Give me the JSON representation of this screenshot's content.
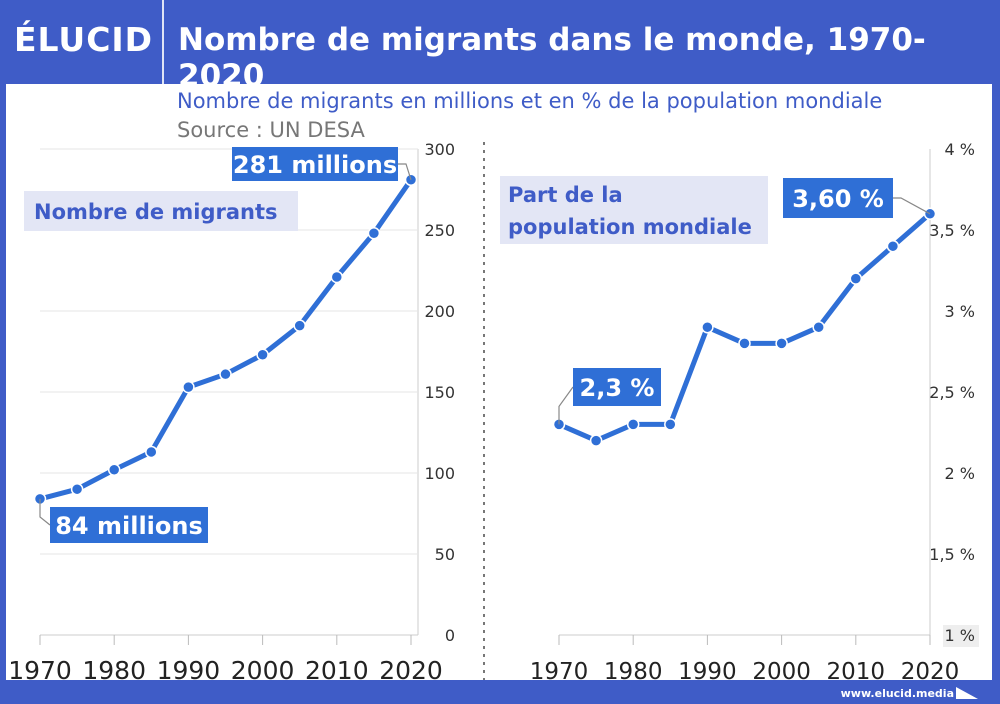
{
  "header": {
    "logo": "ÉLUCID",
    "title": "Nombre de migrants dans le monde, 1970-2020"
  },
  "subtitle": "Nombre de migrants en millions et en % de la population mondiale",
  "source": "Source : UN DESA",
  "footer": "www.elucid.media",
  "colors": {
    "brand": "#3f5cc7",
    "line": "#2f6fd6",
    "label_bg": "#2f6fd6",
    "legend_bg": "#e3e6f5",
    "grid": "#e6e6e6"
  },
  "chart_data": [
    {
      "type": "line",
      "legend": "Nombre de migrants",
      "x": [
        1970,
        1975,
        1980,
        1985,
        1990,
        1995,
        2000,
        2005,
        2010,
        2015,
        2020
      ],
      "values": [
        84,
        90,
        102,
        113,
        153,
        161,
        173,
        191,
        221,
        248,
        281
      ],
      "xticks": [
        "1970",
        "1980",
        "1990",
        "2000",
        "2010",
        "2020"
      ],
      "yticks": [
        "0",
        "50",
        "100",
        "150",
        "200",
        "250",
        "300"
      ],
      "ylim": [
        0,
        300
      ],
      "grid": true,
      "annotations": [
        {
          "x": 1970,
          "text": "84 millions"
        },
        {
          "x": 2020,
          "text": "281 millions"
        }
      ]
    },
    {
      "type": "line",
      "legend": "Part de la population mondiale",
      "x": [
        1970,
        1975,
        1980,
        1985,
        1990,
        1995,
        2000,
        2005,
        2010,
        2015,
        2020
      ],
      "values": [
        2.3,
        2.2,
        2.3,
        2.3,
        2.9,
        2.8,
        2.8,
        2.9,
        3.2,
        3.4,
        3.6
      ],
      "xticks": [
        "1970",
        "1980",
        "1990",
        "2000",
        "2010",
        "2020"
      ],
      "yticks": [
        "1 %",
        "1,5 %",
        "2 %",
        "2,5 %",
        "3 %",
        "3,5 %",
        "4 %"
      ],
      "ylim": [
        1,
        4
      ],
      "grid": false,
      "annotations": [
        {
          "x": 1970,
          "text": "2,3 %"
        },
        {
          "x": 2020,
          "text": "3,60 %"
        }
      ]
    }
  ]
}
